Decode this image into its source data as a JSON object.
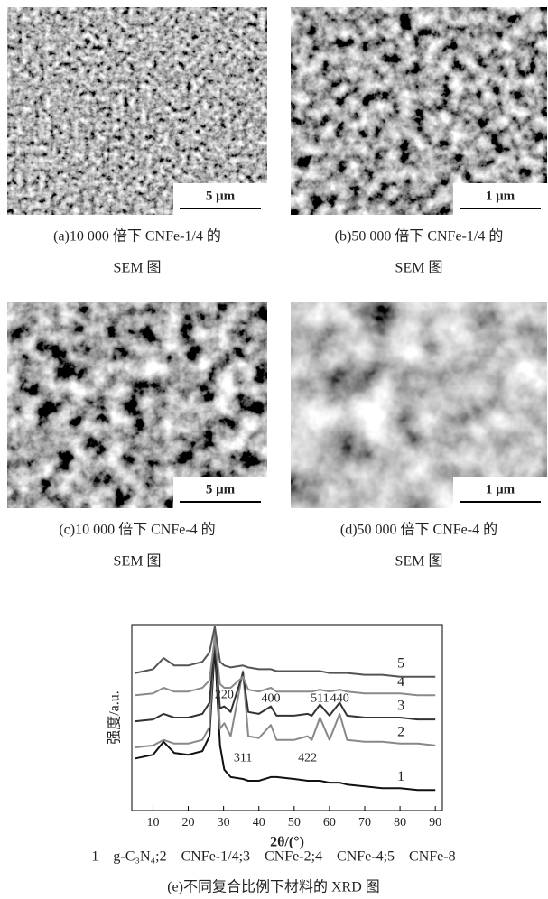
{
  "figures": [
    {
      "scale_bar": "5 μm",
      "caption": [
        "(a)10 000 倍下 CNFe-1/4 的",
        "SEM 图"
      ]
    },
    {
      "scale_bar": "1 μm",
      "caption": [
        "(b)50 000 倍下 CNFe-1/4 的",
        "SEM 图"
      ]
    },
    {
      "scale_bar": "5 μm",
      "caption": [
        "(c)10 000 倍下 CNFe-4 的",
        "SEM 图"
      ]
    },
    {
      "scale_bar": "1 μm",
      "caption": [
        "(d)50 000 倍下 CNFe-4 的",
        "SEM 图"
      ]
    }
  ],
  "chart_data": {
    "type": "line",
    "x_label": "2θ/(°)",
    "y_label": "强度/a.u.",
    "x": [
      5,
      10,
      13,
      16,
      20,
      24,
      26,
      27.5,
      29,
      30.2,
      32,
      35.5,
      37,
      40,
      43.4,
      45,
      50,
      53.8,
      55,
      57.3,
      60,
      62.9,
      65,
      70,
      75,
      80,
      85,
      90
    ],
    "xlim": [
      4,
      92
    ],
    "xticks": [
      10,
      20,
      30,
      40,
      50,
      60,
      70,
      80,
      90
    ],
    "ylim": [
      0,
      100
    ],
    "series": [
      {
        "name": "1",
        "color": "#111111",
        "values": [
          28,
          30,
          37,
          31,
          30,
          32,
          40,
          88,
          35,
          22,
          18,
          17,
          16,
          16,
          18,
          18,
          17,
          16,
          16,
          16,
          15,
          15,
          14,
          13,
          12,
          12,
          11,
          11
        ]
      },
      {
        "name": "2",
        "color": "#888888",
        "values": [
          34,
          35,
          38,
          36,
          36,
          38,
          45,
          97,
          44,
          47,
          40,
          75,
          40,
          39,
          46,
          38,
          38,
          40,
          38,
          50,
          38,
          52,
          38,
          37,
          37,
          36,
          36,
          35
        ]
      },
      {
        "name": "3",
        "color": "#333333",
        "values": [
          48,
          49,
          52,
          50,
          50,
          52,
          58,
          90,
          55,
          56,
          53,
          74,
          53,
          52,
          56,
          51,
          51,
          52,
          51,
          57,
          51,
          58,
          51,
          50,
          50,
          50,
          49,
          49
        ]
      },
      {
        "name": "4",
        "color": "#8a8a8a",
        "values": [
          62,
          63,
          66,
          64,
          64,
          66,
          70,
          93,
          68,
          66,
          66,
          72,
          65,
          64,
          66,
          64,
          64,
          64,
          64,
          65,
          64,
          65,
          64,
          63,
          63,
          63,
          62,
          62
        ]
      },
      {
        "name": "5",
        "color": "#555555",
        "values": [
          74,
          76,
          82,
          78,
          78,
          80,
          85,
          99,
          80,
          78,
          77,
          78,
          77,
          76,
          76,
          75,
          75,
          75,
          75,
          75,
          74,
          74,
          74,
          73,
          73,
          72,
          72,
          72
        ]
      }
    ],
    "annotations": [
      {
        "text": "220",
        "x": 30.2,
        "y": 62
      },
      {
        "text": "311",
        "x": 35.5,
        "y": 28
      },
      {
        "text": "400",
        "x": 43.4,
        "y": 60
      },
      {
        "text": "422",
        "x": 53.8,
        "y": 28
      },
      {
        "text": "511",
        "x": 57.3,
        "y": 60
      },
      {
        "text": "440",
        "x": 62.9,
        "y": 60
      }
    ]
  },
  "legend_text": "1—g-C₃N₄;2—CNFe-1/4;3—CNFe-2;4—CNFe-4;5—CNFe-8",
  "caption": "(e)不同复合比例下材料的 XRD 图"
}
